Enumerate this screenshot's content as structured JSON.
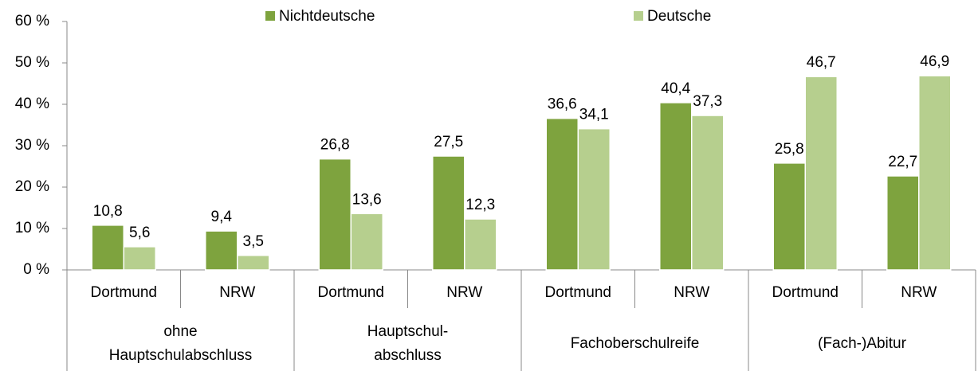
{
  "chart_data": {
    "type": "bar",
    "categories": [
      "Dortmund",
      "NRW",
      "Dortmund",
      "NRW",
      "Dortmund",
      "NRW",
      "Dortmund",
      "NRW"
    ],
    "groups": [
      "ohne\nHauptschulabschluss",
      "Hauptschul-\nabschluss",
      "Fachoberschulreife",
      "(Fach-)Abitur"
    ],
    "series": [
      {
        "name": "Nichtdeutsche",
        "color": "#7ea33e",
        "values": [
          10.8,
          9.4,
          26.8,
          27.5,
          36.6,
          40.4,
          25.8,
          22.7
        ],
        "value_labels": [
          "10,8",
          "9,4",
          "26,8",
          "27,5",
          "36,6",
          "40,4",
          "25,8",
          "22,7"
        ]
      },
      {
        "name": "Deutsche",
        "color": "#b6cf8e",
        "values": [
          5.6,
          3.5,
          13.6,
          12.3,
          34.1,
          37.3,
          46.7,
          46.9
        ],
        "value_labels": [
          "5,6",
          "3,5",
          "13,6",
          "12,3",
          "34,1",
          "37,3",
          "46,7",
          "46,9"
        ]
      }
    ],
    "ylim": [
      0,
      60
    ],
    "yticks": [
      {
        "value": 0,
        "label": "0 %"
      },
      {
        "value": 10,
        "label": "10 %"
      },
      {
        "value": 20,
        "label": "20 %"
      },
      {
        "value": 30,
        "label": "30 %"
      },
      {
        "value": 40,
        "label": "40 %"
      },
      {
        "value": 50,
        "label": "50 %"
      },
      {
        "value": 60,
        "label": "60 %"
      }
    ],
    "grid": false,
    "legend": "top"
  }
}
